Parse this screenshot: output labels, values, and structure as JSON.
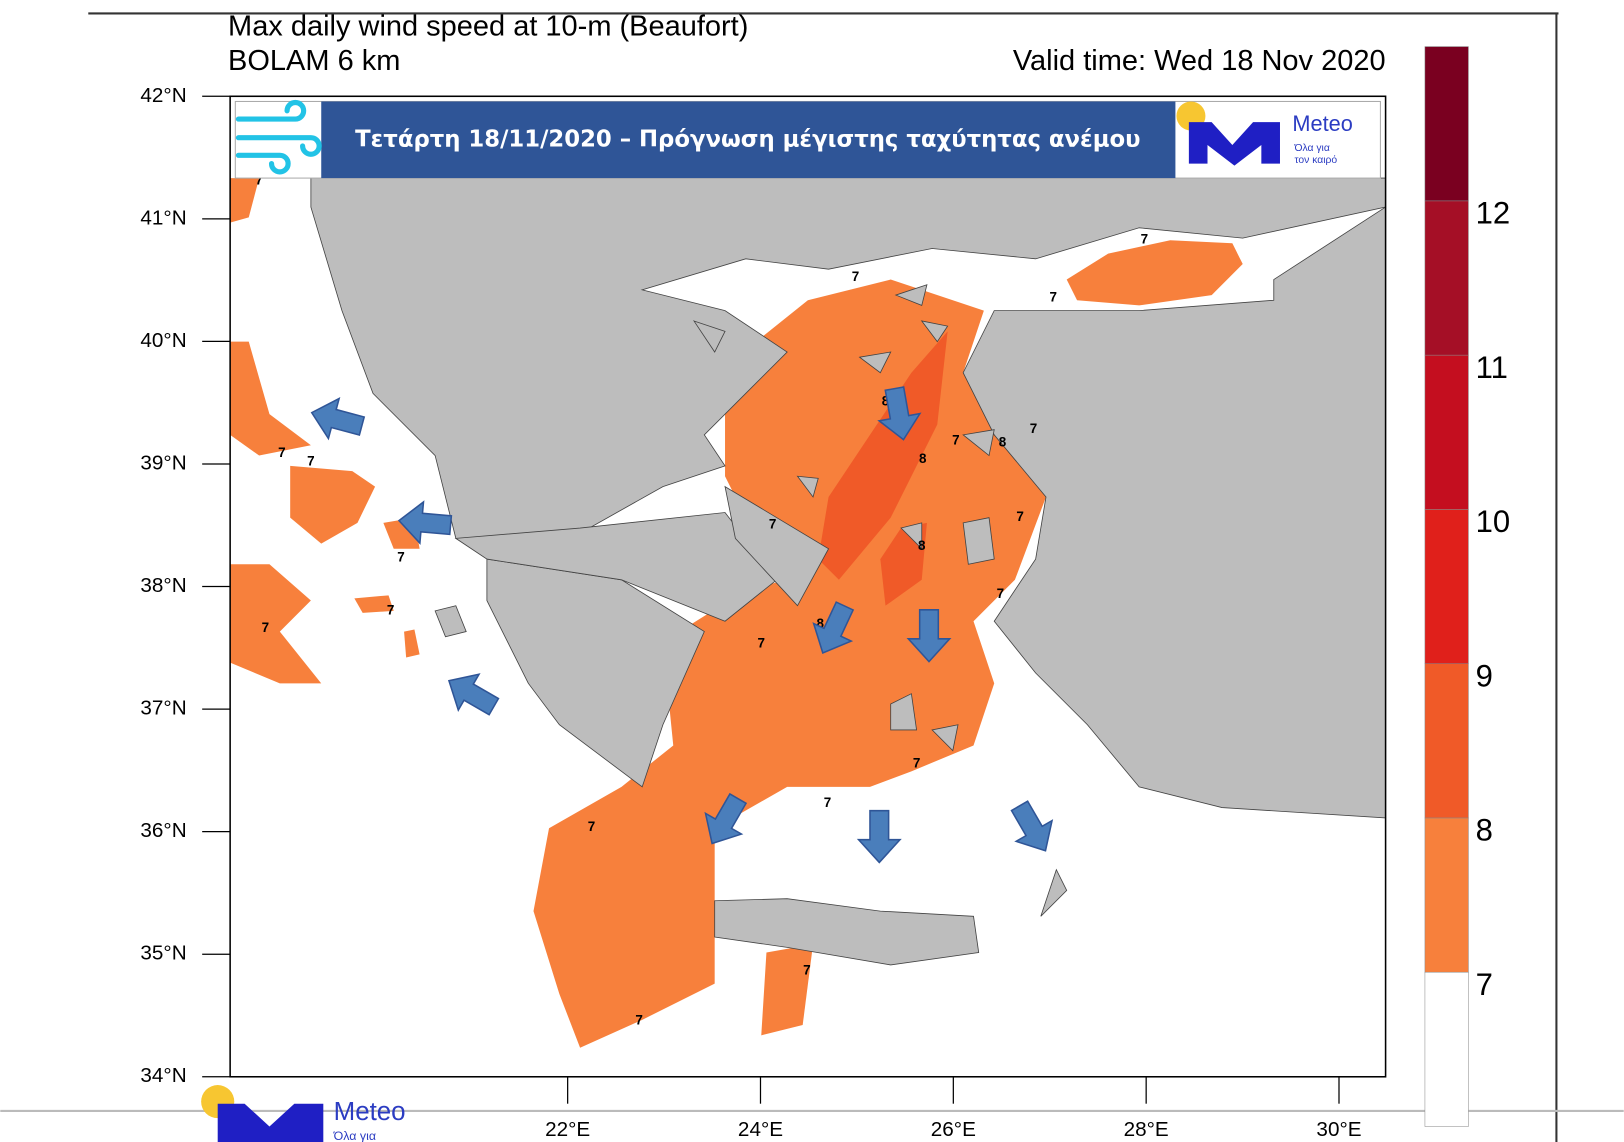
{
  "title": "Max daily wind speed at 10-m (Beaufort)",
  "subtitle": "BOLAM 6 km",
  "valid_time": "Valid time: Wed 18 Nov 2020",
  "banner": {
    "text": "Τετάρτη 18/11/2020 – Πρόγνωση μέγιστης ταχύτητας ανέμου",
    "logo": "Meteo",
    "logo_tagline": [
      "Όλα για",
      "τον καιρό"
    ]
  },
  "footer_logo": {
    "text": "Meteo",
    "tagline": "Όλα για"
  },
  "lat_labels": [
    "42°N",
    "41°N",
    "40°N",
    "39°N",
    "38°N",
    "37°N",
    "36°N",
    "35°N",
    "34°N"
  ],
  "lon_labels": [
    "22°E",
    "24°E",
    "26°E",
    "28°E",
    "30°E"
  ],
  "colorbar": {
    "levels": [
      7,
      8,
      9,
      10,
      11,
      12
    ],
    "colors": [
      "#ffffff",
      "#f7803c",
      "#f05a28",
      "#e0201b",
      "#c40e1f",
      "#a50f26",
      "#7a0020"
    ]
  },
  "land_color": "#bdbdbd",
  "arrow_color": "#4a7ebb",
  "contour_labels": [
    "7",
    "7",
    "7",
    "7",
    "7",
    "7",
    "7",
    "7",
    "8",
    "8",
    "7",
    "8",
    "7",
    "7",
    "8",
    "7",
    "7",
    "8",
    "7",
    "7",
    "7",
    "7",
    "7",
    "7",
    "7"
  ]
}
